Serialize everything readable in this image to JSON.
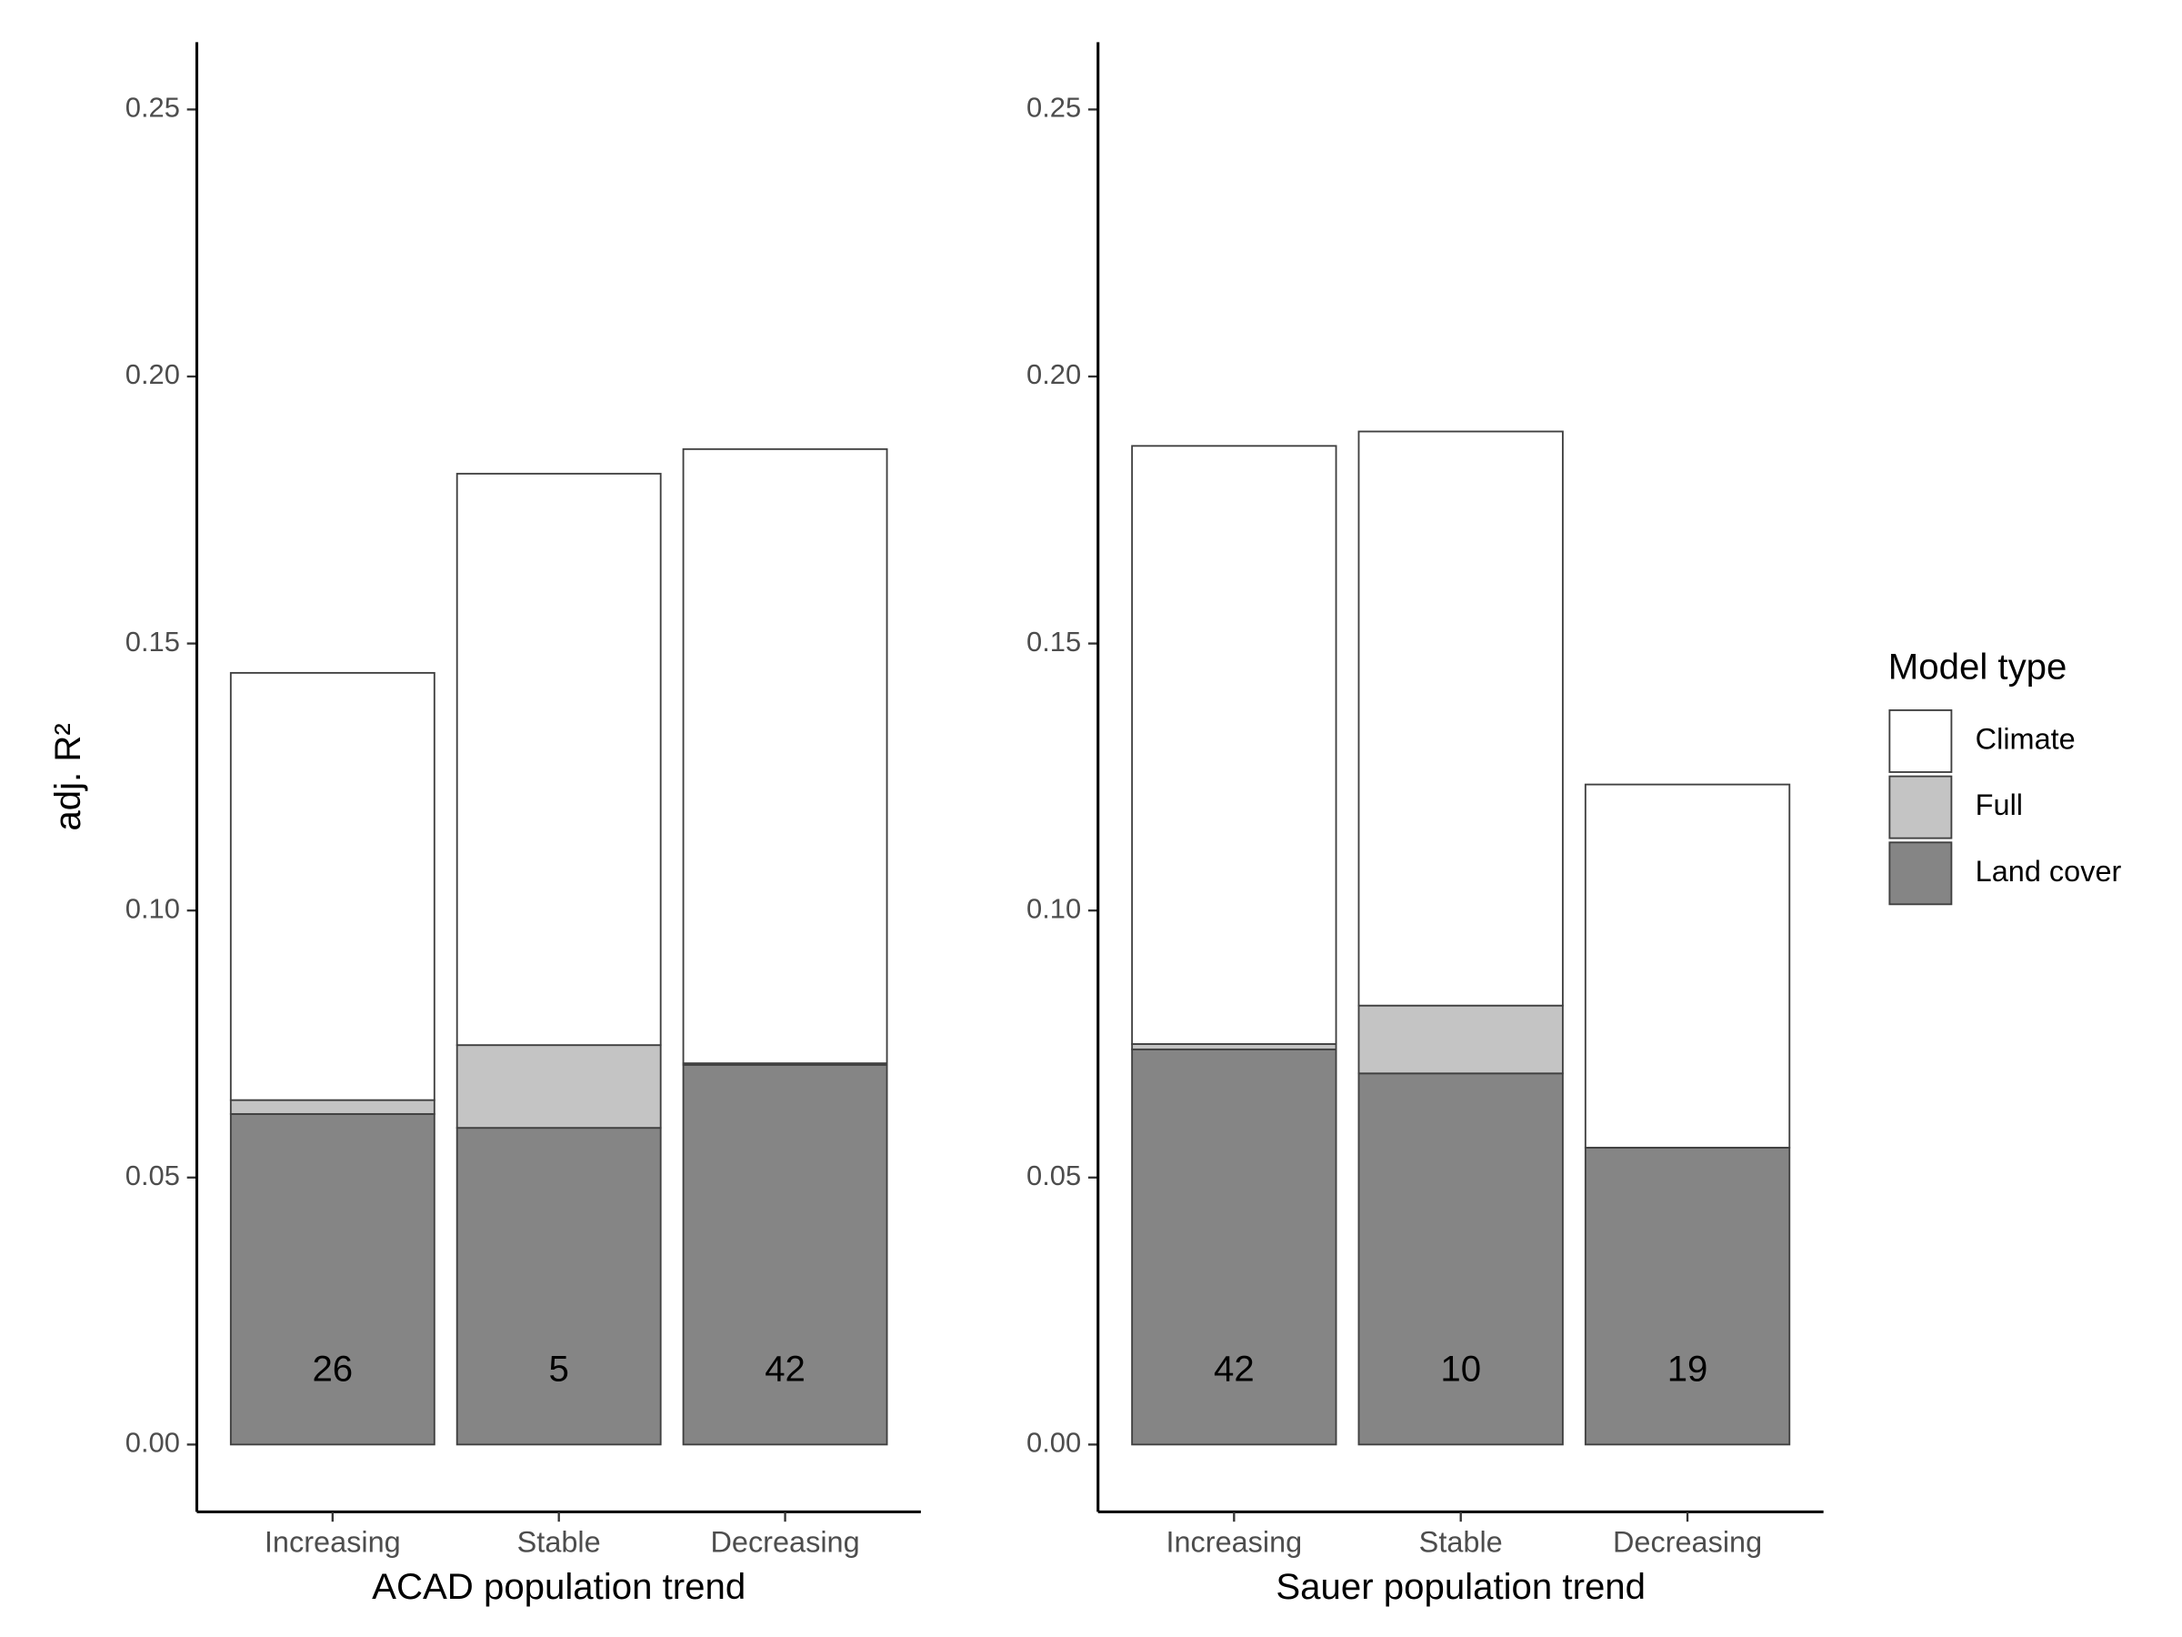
{
  "chart_data": [
    {
      "type": "stacked_bar",
      "xlabel": "ACAD population trend",
      "ylabel": "adj. R²",
      "categories": [
        "Increasing",
        "Stable",
        "Decreasing"
      ],
      "series": [
        {
          "name": "Land cover",
          "color": "#858585",
          "values": [
            0.0619,
            0.0593,
            0.0711
          ]
        },
        {
          "name": "Full",
          "color": "#c4c4c4",
          "values": [
            0.0026,
            0.0155,
            0.0003
          ]
        },
        {
          "name": "Climate",
          "color": "#ffffff",
          "values": [
            0.08,
            0.107,
            0.115
          ]
        }
      ],
      "counts": [
        26,
        5,
        42
      ],
      "ylim": [
        -0.0126,
        0.2626
      ],
      "yticks": [
        {
          "value": 0,
          "label": "0.00"
        },
        {
          "value": 0.05,
          "label": "0.05"
        },
        {
          "value": 0.1,
          "label": "0.10"
        },
        {
          "value": 0.15,
          "label": "0.15"
        },
        {
          "value": 0.2,
          "label": "0.20"
        },
        {
          "value": 0.25,
          "label": "0.25"
        }
      ]
    },
    {
      "type": "stacked_bar",
      "xlabel": "Sauer population trend",
      "categories": [
        "Increasing",
        "Stable",
        "Decreasing"
      ],
      "series": [
        {
          "name": "Land cover",
          "color": "#858585",
          "values": [
            0.074,
            0.0695,
            0.0556
          ]
        },
        {
          "name": "Full",
          "color": "#c4c4c4",
          "values": [
            0.001,
            0.0127,
            0
          ]
        },
        {
          "name": "Climate",
          "color": "#ffffff",
          "values": [
            0.112,
            0.1075,
            0.068
          ]
        }
      ],
      "counts": [
        42,
        10,
        19
      ],
      "ylim": [
        -0.0126,
        0.2626
      ],
      "yticks": [
        {
          "value": 0,
          "label": "0.00"
        },
        {
          "value": 0.05,
          "label": "0.05"
        },
        {
          "value": 0.1,
          "label": "0.10"
        },
        {
          "value": 0.15,
          "label": "0.15"
        },
        {
          "value": 0.2,
          "label": "0.20"
        },
        {
          "value": 0.25,
          "label": "0.25"
        }
      ],
      "legend_title": "Model type",
      "legend": "right"
    }
  ]
}
